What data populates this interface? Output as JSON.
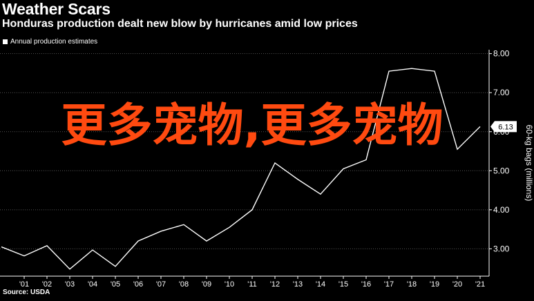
{
  "header": {
    "title": "Weather Scars",
    "subtitle": "Honduras production dealt new blow by hurricanes amid low prices"
  },
  "legend": {
    "label": "Annual production estimates"
  },
  "source": "Source: USDA",
  "watermark": "更多宠物,更多宠物",
  "colors": {
    "background": "#000000",
    "line": "#ffffff",
    "grid": "#555555",
    "watermark": "#ff4a10"
  },
  "chart_data": {
    "type": "line",
    "title": "Weather Scars",
    "subtitle": "Honduras production dealt new blow by hurricanes amid low prices",
    "ylabel": "60-kg bags (millions)",
    "ylim": [
      2.3,
      8.1
    ],
    "y_ticks": [
      "3.00",
      "4.00",
      "5.00",
      "6.00",
      "7.00",
      "8.00"
    ],
    "y_tick_values": [
      3,
      4,
      5,
      6,
      7,
      8
    ],
    "x_tick_labels": [
      "'01",
      "'02",
      "'03",
      "'04",
      "'05",
      "'06",
      "'07",
      "'08",
      "'09",
      "'10",
      "'11",
      "'12",
      "'13",
      "'14",
      "'15",
      "'16",
      "'17",
      "'18",
      "'19",
      "'20",
      "'21"
    ],
    "last_value_label": "6.13",
    "grid": true,
    "y_axis_side": "right",
    "series": [
      {
        "name": "Annual production estimates",
        "x": [
          2000,
          2001,
          2002,
          2003,
          2004,
          2005,
          2006,
          2007,
          2008,
          2009,
          2010,
          2011,
          2012,
          2013,
          2014,
          2015,
          2016,
          2017,
          2018,
          2019,
          2020,
          2021
        ],
        "values": [
          3.05,
          2.82,
          3.08,
          2.48,
          2.97,
          2.55,
          3.2,
          3.45,
          3.62,
          3.2,
          3.55,
          4.0,
          5.2,
          4.78,
          4.4,
          5.05,
          5.28,
          7.55,
          7.62,
          7.55,
          5.55,
          6.13
        ]
      }
    ]
  }
}
